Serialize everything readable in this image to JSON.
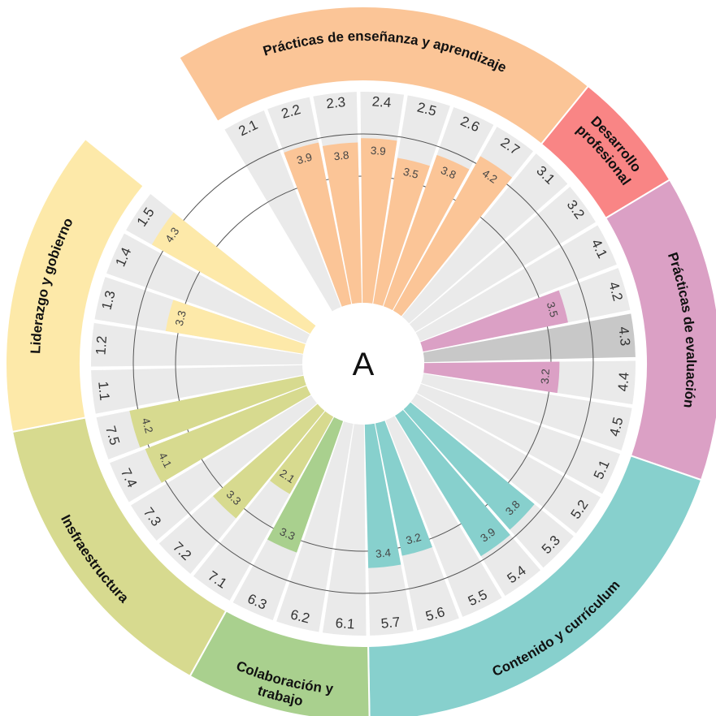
{
  "center_label": "A",
  "chart_data": {
    "type": "radial-bar",
    "scale_max": 5,
    "reference_circles": [
      3,
      4
    ],
    "domains": [
      {
        "name": "Prácticas de enseñanza y aprendizaje",
        "lines": [
          "Prácticas de enseñanza y aprendizaje"
        ],
        "color": "#fbc597",
        "bar_color": "#fbc597",
        "items": [
          {
            "id": "2.1",
            "value": null
          },
          {
            "id": "2.2",
            "value": 3.9
          },
          {
            "id": "2.3",
            "value": 3.8
          },
          {
            "id": "2.4",
            "value": 3.9
          },
          {
            "id": "2.5",
            "value": 3.5
          },
          {
            "id": "2.6",
            "value": 3.8
          },
          {
            "id": "2.7",
            "value": 4.2
          }
        ]
      },
      {
        "name": "Desarrollo profesional",
        "lines": [
          "Desarrollo",
          "profesional"
        ],
        "color": "#f98585",
        "bar_color": "#f98585",
        "items": [
          {
            "id": "3.1",
            "value": null
          },
          {
            "id": "3.2",
            "value": null
          }
        ]
      },
      {
        "name": "Prácticas de evaluación",
        "lines": [
          "Prácticas de evaluación"
        ],
        "color": "#dba0c5",
        "bar_color": "#dba0c5",
        "items": [
          {
            "id": "4.1",
            "value": null
          },
          {
            "id": "4.2",
            "value": 3.5
          },
          {
            "id": "4.3",
            "value": null,
            "highlight": true
          },
          {
            "id": "4.4",
            "value": 3.2
          },
          {
            "id": "4.5",
            "value": null
          }
        ]
      },
      {
        "name": "Contenido y currículum",
        "lines": [
          "Contenido y currículum"
        ],
        "color": "#87d0cd",
        "bar_color": "#87d0cd",
        "items": [
          {
            "id": "5.1",
            "value": null
          },
          {
            "id": "5.2",
            "value": null
          },
          {
            "id": "5.3",
            "value": 3.8
          },
          {
            "id": "5.4",
            "value": 3.9
          },
          {
            "id": "5.5",
            "value": null
          },
          {
            "id": "5.6",
            "value": 3.2
          },
          {
            "id": "5.7",
            "value": 3.4
          }
        ]
      },
      {
        "name": "Colaboración y trabajo",
        "lines": [
          "Colaboración y",
          "trabajo"
        ],
        "color": "#a9d08e",
        "bar_color": "#a9d08e",
        "items": [
          {
            "id": "6.1",
            "value": null
          },
          {
            "id": "6.2",
            "value": null
          },
          {
            "id": "6.3",
            "value": 3.3
          }
        ]
      },
      {
        "name": "Insfraestructura",
        "lines": [
          "Insfraestructura"
        ],
        "color": "#d7da8f",
        "bar_color": "#d7da8f",
        "items": [
          {
            "id": "7.1",
            "value": 2.1
          },
          {
            "id": "7.2",
            "value": 3.3
          },
          {
            "id": "7.3",
            "value": null
          },
          {
            "id": "7.4",
            "value": 4.1
          },
          {
            "id": "7.5",
            "value": 4.2
          }
        ]
      },
      {
        "name": "Liderazgo y gobierno",
        "lines": [
          "Liderazgo y gobierno"
        ],
        "color": "#fde9a9",
        "bar_color": "#fde9a9",
        "items": [
          {
            "id": "1.1",
            "value": null
          },
          {
            "id": "1.2",
            "value": null
          },
          {
            "id": "1.3",
            "value": 3.3
          },
          {
            "id": "1.4",
            "value": null
          },
          {
            "id": "1.5",
            "value": 4.3
          }
        ]
      }
    ],
    "colors": {
      "background_bar": "#eaeaea",
      "highlight_bar": "#c8c8c8",
      "reference_line": "#555555"
    }
  }
}
